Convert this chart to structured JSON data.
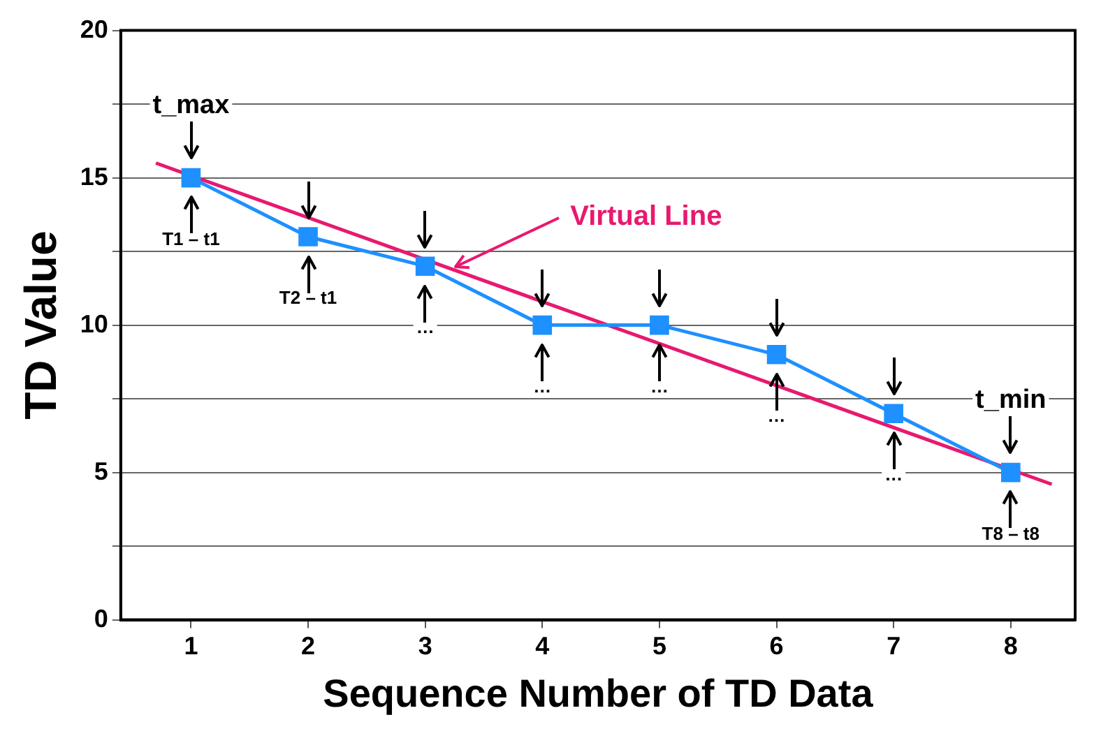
{
  "chart_data": {
    "type": "line",
    "xlabel": "Sequence Number of TD Data",
    "ylabel": "TD Value",
    "xlim": [
      0.4,
      8.55
    ],
    "xticks": [
      1,
      2,
      3,
      4,
      5,
      6,
      7,
      8
    ],
    "ylim": [
      0,
      20
    ],
    "yticks": [
      0,
      {
        "value": 2.5,
        "label": null
      },
      5,
      {
        "value": 7.5,
        "label": null
      },
      10,
      {
        "value": 12.5,
        "label": null
      },
      15,
      {
        "value": 17.5,
        "label": null
      },
      20
    ],
    "grid": "y",
    "legend": false,
    "series": [
      {
        "color": "#1e90ff",
        "marker": "square",
        "x": [
          1,
          2,
          3,
          4,
          5,
          6,
          7,
          8
        ],
        "values": [
          15,
          13,
          12,
          10,
          10,
          9,
          7,
          5
        ]
      },
      {
        "name": "Virtual Line",
        "color": "#e8196e",
        "marker": "none",
        "x": [
          0.7,
          8.35
        ],
        "values": [
          15.5,
          4.6
        ]
      }
    ],
    "annotations": [
      {
        "text": "t_max",
        "x": 1,
        "y": 15
      },
      {
        "text": "T1 – t1",
        "x": 1,
        "y": 15
      },
      {
        "text": "T2 – t1",
        "x": 2,
        "y": 13
      },
      {
        "text": "…",
        "x": 3,
        "y": 12
      },
      {
        "text": "…",
        "x": 4,
        "y": 10
      },
      {
        "text": "…",
        "x": 5,
        "y": 10
      },
      {
        "text": "…",
        "x": 6,
        "y": 9
      },
      {
        "text": "…",
        "x": 7,
        "y": 7
      },
      {
        "text": "t_min",
        "x": 8,
        "y": 5
      },
      {
        "text": "T8 – t8",
        "x": 8,
        "y": 5
      }
    ]
  }
}
